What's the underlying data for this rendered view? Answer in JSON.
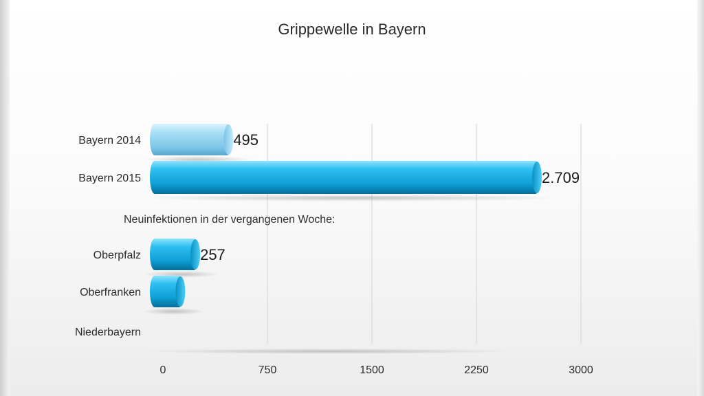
{
  "chart_data": {
    "type": "bar",
    "orientation": "horizontal",
    "title": "Grippewelle in Bayern",
    "note": "Neuinfektionen in der vergangenen Woche:",
    "categories": [
      "Bayern 2014",
      "Bayern 2015",
      "Oberpfalz",
      "Oberfranken",
      "Niederbayern"
    ],
    "values": [
      495,
      2709,
      257,
      150,
      0
    ],
    "value_labels": [
      "495",
      "2.709",
      "257",
      "",
      ""
    ],
    "xlim": [
      0,
      3000
    ],
    "x_ticks": [
      0,
      750,
      1500,
      2250,
      3000
    ],
    "x_tick_labels": [
      "0",
      "750",
      "1500",
      "2250",
      "3000"
    ],
    "grid": true,
    "colors": {
      "bayern_2014": "#8fd3ef",
      "default_bar": "#1fb2e4"
    }
  }
}
